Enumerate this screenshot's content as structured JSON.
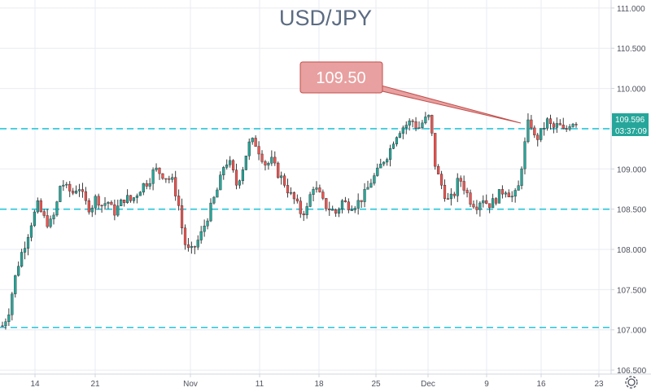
{
  "chart_data": {
    "type": "candlestick",
    "title": "USD/JPY",
    "ylim": [
      106.45,
      111.1
    ],
    "y_ticks": [
      "111.000",
      "110.500",
      "110.000",
      "109.500",
      "109.000",
      "108.500",
      "108.000",
      "107.500",
      "107.000",
      "106.500"
    ],
    "y_tick_values": [
      111.0,
      110.5,
      110.0,
      109.5,
      109.0,
      108.5,
      108.0,
      107.5,
      107.0,
      106.5
    ],
    "x_ticks": [
      "14",
      "21",
      "Nov",
      "11",
      "18",
      "25",
      "Dec",
      "9",
      "16",
      "23"
    ],
    "horizontal_levels": [
      109.5,
      108.5,
      107.03
    ],
    "annotation": {
      "label": "109.50",
      "points_to": 109.55
    },
    "last_price": {
      "label": "109.596",
      "value": 109.596
    },
    "countdown": {
      "label": "03:37:09"
    },
    "close_path": [
      [
        0,
        107.05
      ],
      [
        1,
        107.2
      ],
      [
        2,
        107.6
      ],
      [
        3,
        107.9
      ],
      [
        4,
        108.1
      ],
      [
        5,
        108.35
      ],
      [
        6,
        108.55
      ],
      [
        7,
        108.4
      ],
      [
        8,
        108.3
      ],
      [
        9,
        108.45
      ],
      [
        10,
        108.85
      ],
      [
        11,
        108.75
      ],
      [
        12,
        108.7
      ],
      [
        13,
        108.8
      ],
      [
        14,
        108.6
      ],
      [
        15,
        108.5
      ],
      [
        16,
        108.65
      ],
      [
        17,
        108.55
      ],
      [
        18,
        108.6
      ],
      [
        19,
        108.45
      ],
      [
        20,
        108.55
      ],
      [
        21,
        108.65
      ],
      [
        22,
        108.6
      ],
      [
        23,
        108.7
      ],
      [
        24,
        108.8
      ],
      [
        25,
        108.85
      ],
      [
        26,
        109.0
      ],
      [
        27,
        108.95
      ],
      [
        28,
        108.9
      ],
      [
        29,
        108.85
      ],
      [
        30,
        108.6
      ],
      [
        31,
        108.1
      ],
      [
        32,
        107.95
      ],
      [
        33,
        108.05
      ],
      [
        34,
        108.2
      ],
      [
        35,
        108.4
      ],
      [
        36,
        108.6
      ],
      [
        37,
        108.8
      ],
      [
        38,
        109.1
      ],
      [
        39,
        109.05
      ],
      [
        40,
        108.8
      ],
      [
        41,
        109.0
      ],
      [
        42,
        109.3
      ],
      [
        43,
        109.35
      ],
      [
        44,
        109.2
      ],
      [
        45,
        109.05
      ],
      [
        46,
        109.1
      ],
      [
        47,
        108.95
      ],
      [
        48,
        108.85
      ],
      [
        49,
        108.7
      ],
      [
        50,
        108.6
      ],
      [
        51,
        108.45
      ],
      [
        52,
        108.5
      ],
      [
        53,
        108.8
      ],
      [
        54,
        108.7
      ],
      [
        55,
        108.55
      ],
      [
        56,
        108.5
      ],
      [
        57,
        108.45
      ],
      [
        58,
        108.6
      ],
      [
        59,
        108.55
      ],
      [
        60,
        108.55
      ],
      [
        61,
        108.6
      ],
      [
        62,
        108.7
      ],
      [
        63,
        108.85
      ],
      [
        64,
        108.95
      ],
      [
        65,
        109.1
      ],
      [
        66,
        109.2
      ],
      [
        67,
        109.4
      ],
      [
        68,
        109.5
      ],
      [
        69,
        109.55
      ],
      [
        70,
        109.6
      ],
      [
        71,
        109.5
      ],
      [
        72,
        109.6
      ],
      [
        73,
        109.65
      ],
      [
        74,
        109.0
      ],
      [
        75,
        108.8
      ],
      [
        76,
        108.6
      ],
      [
        77,
        108.65
      ],
      [
        78,
        108.9
      ],
      [
        79,
        108.75
      ],
      [
        80,
        108.6
      ],
      [
        81,
        108.55
      ],
      [
        82,
        108.65
      ],
      [
        83,
        108.55
      ],
      [
        84,
        108.6
      ],
      [
        85,
        108.7
      ],
      [
        86,
        108.75
      ],
      [
        87,
        108.65
      ],
      [
        88,
        108.7
      ],
      [
        89,
        109.2
      ],
      [
        90,
        109.65
      ],
      [
        91,
        109.35
      ],
      [
        92,
        109.45
      ],
      [
        93,
        109.6
      ],
      [
        94,
        109.5
      ],
      [
        95,
        109.55
      ],
      [
        96,
        109.45
      ],
      [
        97,
        109.58
      ],
      [
        98,
        109.596
      ]
    ]
  }
}
